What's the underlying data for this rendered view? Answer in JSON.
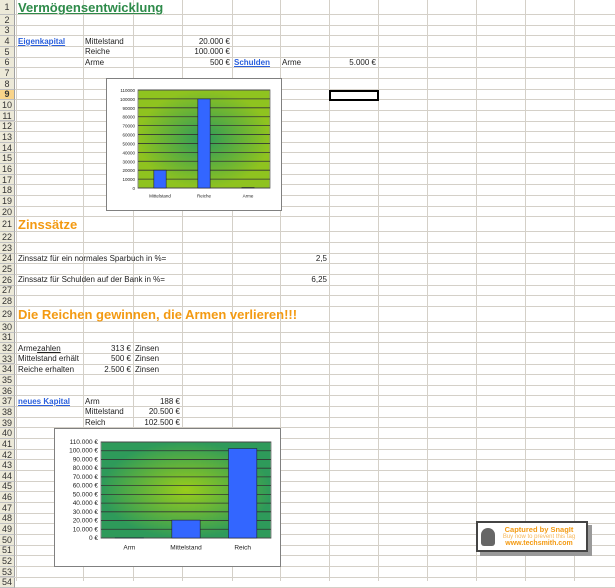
{
  "sheet": {
    "selected_cell": "G9",
    "visible_rows": 54,
    "cells": [
      {
        "ref": "A1",
        "text": "Vermögensentwicklung",
        "style": "title-green",
        "name": "sheet-title"
      },
      {
        "ref": "A4",
        "text": "Eigenkapital",
        "style": "link",
        "name": "eigenkapital-link"
      },
      {
        "ref": "B4",
        "text": "Mittelstand"
      },
      {
        "ref": "D4",
        "text": "20.000 €",
        "style": "num"
      },
      {
        "ref": "B5",
        "text": "Reiche"
      },
      {
        "ref": "D5",
        "text": "100.000 €",
        "style": "num"
      },
      {
        "ref": "B6",
        "text": "Arme"
      },
      {
        "ref": "D6",
        "text": "500 €",
        "style": "num"
      },
      {
        "ref": "E6",
        "text": "Schulden",
        "style": "link",
        "name": "schulden-link"
      },
      {
        "ref": "F6",
        "text": "Arme"
      },
      {
        "ref": "G6",
        "text": "5.000 €",
        "style": "num"
      },
      {
        "ref": "A21",
        "text": "Zinssätze",
        "style": "title-orange",
        "name": "section-title"
      },
      {
        "ref": "A24",
        "text": "Zinssatz für ein normales Sparbuch in %="
      },
      {
        "ref": "F24",
        "text": "2,5",
        "style": "num"
      },
      {
        "ref": "A26",
        "text": "Zinssatz für Schulden auf der Bank in %="
      },
      {
        "ref": "F26",
        "text": "6,25",
        "style": "num"
      },
      {
        "ref": "A29",
        "text": "Die Reichen gewinnen, die Armen verlieren!!!",
        "style": "title-orange",
        "name": "section-title"
      },
      {
        "ref": "A32",
        "text": "Arme ",
        "suffix": "zahlen"
      },
      {
        "ref": "B32",
        "text": "313 €",
        "style": "num"
      },
      {
        "ref": "C32",
        "text": "Zinsen"
      },
      {
        "ref": "A33",
        "text": "Mittelstand erhält"
      },
      {
        "ref": "B33",
        "text": "500 €",
        "style": "num"
      },
      {
        "ref": "C33",
        "text": "Zinsen"
      },
      {
        "ref": "A34",
        "text": "Reiche erhalten"
      },
      {
        "ref": "B34",
        "text": "2.500 €",
        "style": "num"
      },
      {
        "ref": "C34",
        "text": "Zinsen"
      },
      {
        "ref": "A37",
        "text": "neues Kapital",
        "style": "link",
        "name": "neues-kapital-link"
      },
      {
        "ref": "B37",
        "text": "Arm"
      },
      {
        "ref": "C37",
        "text": "188 €",
        "style": "num"
      },
      {
        "ref": "B38",
        "text": "Mittelstand"
      },
      {
        "ref": "C38",
        "text": "20.500 €",
        "style": "num"
      },
      {
        "ref": "B39",
        "text": "Reich"
      },
      {
        "ref": "C39",
        "text": "102.500 €",
        "style": "num"
      }
    ]
  },
  "chart_data": [
    {
      "type": "bar",
      "categories": [
        "Mittelstand",
        "Reiche",
        "Arme"
      ],
      "values": [
        20000,
        100000,
        500
      ],
      "ylim": [
        0,
        110000
      ],
      "ytick_step": 10000,
      "ytick_format": "plain",
      "grid": true,
      "bar_color": "#3366ff",
      "plot_bg": "#8fc31f"
    },
    {
      "type": "bar",
      "categories": [
        "Arm",
        "Mittelstand",
        "Reich"
      ],
      "values": [
        188,
        20500,
        102500
      ],
      "ylim": [
        0,
        110000
      ],
      "ytick_step": 10000,
      "ytick_format": "euro",
      "grid": true,
      "bar_color": "#3366ff",
      "plot_bg": "#2e9a5a"
    }
  ],
  "watermark": {
    "line1": "Captured by SnagIt",
    "line2": "Buy now to prevent this tag",
    "line3": "www.techsmith.com"
  }
}
